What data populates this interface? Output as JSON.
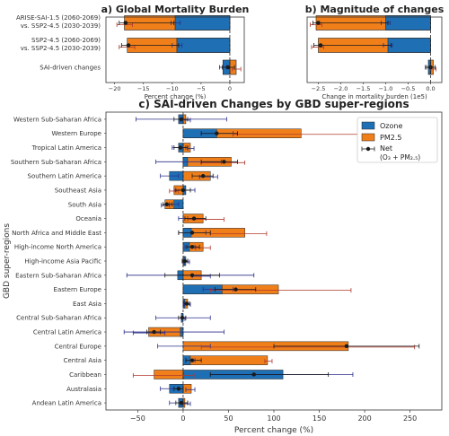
{
  "colors": {
    "ozone": "#1f6fb4",
    "pm25": "#f07f1a",
    "ozone_err": "#2b2f8a",
    "pm25_err": "#b03a2e",
    "net": "#1a1a1a",
    "background": "#ffffff",
    "frame": "#333333"
  },
  "chart_data": [
    {
      "type": "bar",
      "title": "a) Global Mortality Burden",
      "xlabel": "Percent change (%)",
      "xlim": [
        -21.5,
        2.5
      ],
      "xticks": [
        -20,
        -15,
        -10,
        -5,
        0
      ],
      "ticks_labels": [
        "−20",
        "−15",
        "−10",
        "−5",
        "0"
      ],
      "categories": [
        "ARISE-SAI-1.5 (2060-2069)\nvs. SSP2-4.5 (2030-2039)",
        "SSP2-4.5 (2060-2069)\nvs. SSP2-4.5 (2030-2039)",
        "SAI-driven changes"
      ],
      "category_lines": [
        [
          "ARISE-SAI-1.5 (2060-2069)",
          "vs. SSP2-4.5 (2030-2039)"
        ],
        [
          "SSP2-4.5 (2060-2069)",
          "vs. SSP2-4.5 (2030-2039)"
        ],
        [
          "SAI-driven changes"
        ]
      ],
      "series": [
        {
          "name": "Ozone",
          "values": [
            -9.5,
            -9.2,
            -1.2
          ],
          "err_low": [
            -10.2,
            -10.0,
            -1.8
          ],
          "err_high": [
            -8.6,
            -8.3,
            -0.6
          ]
        },
        {
          "name": "PM2.5",
          "values": [
            -18.3,
            -17.8,
            1.1
          ],
          "err_low": [
            -19.6,
            -19.2,
            0.4
          ],
          "err_high": [
            -16.9,
            -16.5,
            1.9
          ]
        },
        {
          "name": "Net",
          "values": [
            -18.1,
            -17.6,
            -0.3
          ],
          "err_low": [
            -19.2,
            -18.8,
            -1.3
          ],
          "err_high": [
            -9.7,
            -8.9,
            0.8
          ]
        }
      ]
    },
    {
      "type": "bar",
      "title": "b) Magnitude of changes",
      "xlabel": "Change in mortality burden (1e5)",
      "xlim": [
        -2.75,
        0.25
      ],
      "xticks": [
        -2.5,
        -2.0,
        -1.5,
        -1.0,
        -0.5,
        0.0
      ],
      "ticks_labels": [
        "−2.5",
        "−2.0",
        "−1.5",
        "−1.0",
        "−0.5",
        "0.0"
      ],
      "series": [
        {
          "name": "Ozone",
          "values": [
            -1.0,
            -0.95,
            -0.05
          ],
          "err_low": [
            -1.1,
            -1.05,
            -0.12
          ],
          "err_high": [
            -0.9,
            -0.85,
            0.0
          ]
        },
        {
          "name": "PM2.5",
          "values": [
            -2.55,
            -2.5,
            0.06
          ],
          "err_low": [
            -2.68,
            -2.65,
            0.01
          ],
          "err_high": [
            -2.42,
            -2.38,
            0.12
          ]
        },
        {
          "name": "Net",
          "values": [
            -2.5,
            -2.45,
            0.0
          ],
          "err_low": [
            -2.62,
            -2.6,
            -0.09
          ],
          "err_high": [
            -0.95,
            -0.88,
            0.1
          ]
        }
      ]
    },
    {
      "type": "bar",
      "title": "c) SAI-driven Changes by GBD super-regions",
      "xlabel": "Percent change (%)",
      "ylabel": "GBD super-regions",
      "xlim": [
        -85,
        285
      ],
      "xticks": [
        -50,
        0,
        50,
        100,
        150,
        200,
        250
      ],
      "ticks_labels": [
        "−50",
        "0",
        "50",
        "100",
        "150",
        "200",
        "250"
      ],
      "legend": {
        "position": "top-right",
        "entries": [
          "Ozone",
          "PM2.5",
          "Net",
          "(O₃ + PM₂.₅)"
        ]
      },
      "categories": [
        "Western Sub-Saharan Africa",
        "Western Europe",
        "Tropical Latin America",
        "Southern Sub-Saharan Africa",
        "Southern Latin America",
        "Southeast Asia",
        "South Asia",
        "Oceania",
        "North Africa and Middle East",
        "High-income North America",
        "High-income Asia Pacific",
        "Eastern Sub-Saharan Africa",
        "Eastern Europe",
        "East Asia",
        "Central Sub-Saharan Africa",
        "Central Latin America",
        "Central Europe",
        "Central Asia",
        "Caribbean",
        "Australasia",
        "Andean Latin America"
      ],
      "series": [
        {
          "name": "Ozone",
          "values": [
            -5,
            37,
            -5,
            5,
            -15,
            3,
            -10,
            0,
            9,
            7,
            2,
            -6,
            43,
            2,
            -2,
            -3,
            0,
            8,
            110,
            -15,
            -5
          ],
          "err_low": [
            -52,
            20,
            -12,
            -30,
            -25,
            -10,
            -15,
            -5,
            -5,
            2,
            -1,
            -62,
            22,
            0,
            -30,
            -65,
            -28,
            3,
            30,
            -25,
            -15
          ],
          "err_high": [
            48,
            55,
            3,
            42,
            -5,
            13,
            -5,
            5,
            25,
            13,
            5,
            78,
            55,
            5,
            30,
            45,
            30,
            13,
            187,
            -5,
            5
          ]
        },
        {
          "name": "PM2.5",
          "values": [
            3,
            130,
            8,
            53,
            30,
            -10,
            -20,
            22,
            68,
            22,
            3,
            20,
            105,
            5,
            0,
            -38,
            182,
            93,
            -32,
            9,
            2
          ],
          "err_low": [
            -3,
            55,
            5,
            20,
            18,
            -15,
            -24,
            5,
            30,
            14,
            1,
            10,
            30,
            2,
            -2,
            -55,
            20,
            90,
            -55,
            3,
            -3
          ],
          "err_high": [
            8,
            195,
            12,
            68,
            38,
            -5,
            -15,
            45,
            92,
            30,
            7,
            30,
            185,
            8,
            2,
            -20,
            255,
            98,
            12,
            13,
            8
          ],
          "error_colors": [
            "ozone_err",
            "pm25_err",
            "ozone_err",
            "pm25_err",
            "ozone_err",
            "pm25_err",
            "ozone_err",
            "pm25_err",
            "pm25_err",
            "pm25_err",
            "ozone_err",
            "ozone_err",
            "pm25_err",
            "ozone_err",
            "ozone_err",
            "ozone_err",
            "pm25_err",
            "pm25_err",
            "pm25_err",
            "ozone_err",
            "ozone_err"
          ]
        },
        {
          "name": "Net",
          "values": [
            -2,
            37,
            -3,
            45,
            22,
            0,
            -18,
            12,
            10,
            10,
            2,
            10,
            58,
            4,
            -1,
            -32,
            180,
            10,
            78,
            -5,
            -2
          ],
          "err_low": [
            -10,
            20,
            -10,
            20,
            10,
            -8,
            -22,
            2,
            -5,
            4,
            -1,
            -20,
            35,
            1,
            -5,
            -40,
            100,
            3,
            30,
            -10,
            -8
          ],
          "err_high": [
            5,
            60,
            5,
            60,
            33,
            8,
            -12,
            25,
            30,
            18,
            5,
            40,
            80,
            7,
            3,
            -25,
            260,
            20,
            160,
            0,
            5
          ]
        }
      ]
    }
  ]
}
